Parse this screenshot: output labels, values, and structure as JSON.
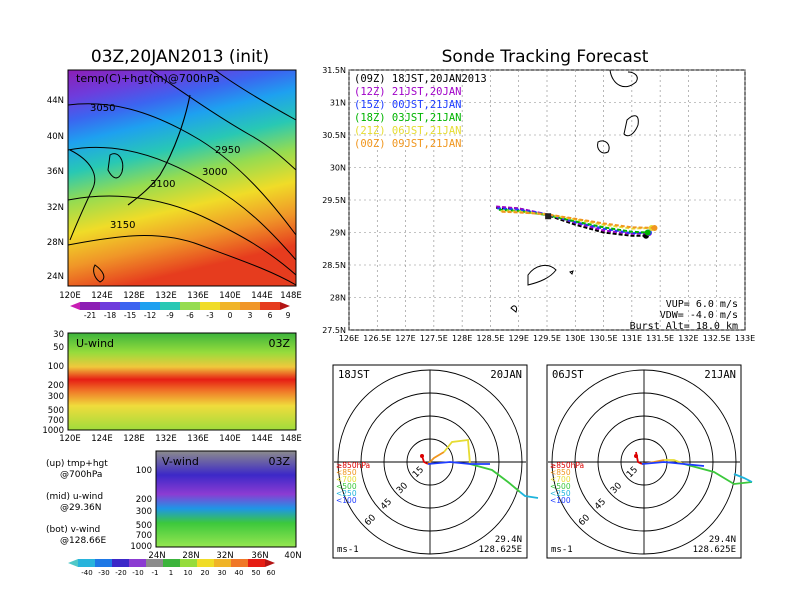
{
  "left_title": "03Z,20JAN2013 (init)",
  "right_title": "Sonde Tracking Forecast",
  "colors": {
    "red": "#dc0000",
    "purple": "#a000c8",
    "blue": "#1e3cff",
    "green": "#00b400",
    "yellow": "#e6dc32",
    "orange": "#f0961e",
    "black": "#000000"
  },
  "map700": {
    "label": "temp(C)+hgt(m)@700hPa",
    "lon_ticks": [
      "120E",
      "124E",
      "128E",
      "132E",
      "136E",
      "140E",
      "144E",
      "148E"
    ],
    "lat_ticks": [
      "44N",
      "40N",
      "36N",
      "32N",
      "28N",
      "24N"
    ],
    "contour_labels": [
      "3050",
      "2950",
      "3000",
      "3100",
      "3150"
    ],
    "colorbar_ticks": [
      "-21",
      "-18",
      "-15",
      "-12",
      "-9",
      "-6",
      "-3",
      "0",
      "3",
      "6",
      "9"
    ]
  },
  "uwind": {
    "label": "U-wind",
    "time": "03Z",
    "p_ticks": [
      "30",
      "50",
      "100",
      "200",
      "300",
      "500",
      "700",
      "1000"
    ],
    "lon_ticks": [
      "120E",
      "124E",
      "128E",
      "132E",
      "136E",
      "140E",
      "144E",
      "148E"
    ]
  },
  "vwind": {
    "label": "V-wind",
    "time": "03Z",
    "p_ticks": [
      "100",
      "200",
      "300",
      "500",
      "700",
      "1000"
    ],
    "lat_ticks": [
      "24N",
      "28N",
      "32N",
      "36N",
      "40N"
    ],
    "colorbar_ticks": [
      "-40",
      "-30",
      "-20",
      "-10",
      "-1",
      "1",
      "10",
      "20",
      "30",
      "40",
      "50",
      "60"
    ]
  },
  "legend_notes": [
    "(up) tmp+hgt",
    "@700hPa",
    "(mid) u-wind",
    "@29.36N",
    "(bot) v-wind",
    "@128.66E"
  ],
  "track": {
    "legend": [
      {
        "label": "(09Z) 18JST,20JAN2013",
        "color": "#000000"
      },
      {
        "label": "(12Z) 21JST,20JAN",
        "color": "#a000c8"
      },
      {
        "label": "(15Z) 00JST,21JAN",
        "color": "#1e3cff"
      },
      {
        "label": "(18Z) 03JST,21JAN",
        "color": "#00b400"
      },
      {
        "label": "(21Z) 06JST,21JAN",
        "color": "#e6dc32"
      },
      {
        "label": "(00Z) 09JST,21JAN",
        "color": "#f0961e"
      }
    ],
    "lat_ticks": [
      "31.5N",
      "31N",
      "30.5N",
      "30N",
      "29.5N",
      "29N",
      "28.5N",
      "28N",
      "27.5N"
    ],
    "lon_ticks": [
      "126E",
      "126.5E",
      "127E",
      "127.5E",
      "128E",
      "128.5E",
      "129E",
      "129.5E",
      "130E",
      "130.5E",
      "131E",
      "131.5E",
      "132E",
      "132.5E",
      "133E"
    ],
    "info": [
      "VUP= 6.0 m/s",
      "VDW= -4.0 m/s",
      "Burst Alt= 18.0 km"
    ]
  },
  "hodo1": {
    "time": "18JST",
    "date": "20JAN",
    "lat": "29.4N",
    "lon": "128.625E",
    "unit": "ms-1",
    "levels": [
      "≥850hPa",
      "<850",
      "<700",
      "<500",
      "<250",
      "<100"
    ],
    "ring_labels": [
      "15",
      "30",
      "45",
      "60"
    ]
  },
  "hodo2": {
    "time": "06JST",
    "date": "21JAN",
    "lat": "29.4N",
    "lon": "128.625E",
    "unit": "ms-1",
    "levels": [
      "≥850hPa",
      "<850",
      "<700",
      "<500",
      "<250",
      "<100"
    ],
    "ring_labels": [
      "15",
      "30",
      "45",
      "60"
    ]
  },
  "chart_data": [
    {
      "type": "line",
      "title": "Sonde Tracking Forecast",
      "xlabel": "",
      "ylabel": "",
      "xlim": [
        126,
        133
      ],
      "ylim": [
        27.5,
        31.5
      ],
      "series": [
        {
          "name": "(09Z) 18JST,20JAN2013",
          "x": [
            128.6,
            129.0,
            129.5,
            130.0,
            130.5,
            131.0,
            131.25
          ],
          "y": [
            29.38,
            29.37,
            29.27,
            29.12,
            29.0,
            28.95,
            28.95
          ]
        },
        {
          "name": "(12Z) 21JST,20JAN",
          "x": [
            128.6,
            129.0,
            129.5,
            130.0,
            130.5,
            131.0,
            131.3
          ],
          "y": [
            29.4,
            29.37,
            29.28,
            29.15,
            29.03,
            28.98,
            28.99
          ]
        },
        {
          "name": "(15Z) 00JST,21JAN",
          "x": [
            128.62,
            129.0,
            129.5,
            130.0,
            130.5,
            131.0,
            131.3
          ],
          "y": [
            29.37,
            29.35,
            29.28,
            29.16,
            29.06,
            28.99,
            29.0
          ]
        },
        {
          "name": "(18Z) 03JST,21JAN",
          "x": [
            128.65,
            129.0,
            129.5,
            130.0,
            130.5,
            131.0,
            131.28
          ],
          "y": [
            29.35,
            29.33,
            29.27,
            29.17,
            29.08,
            29.01,
            29.0
          ]
        },
        {
          "name": "(21Z) 06JST,21JAN",
          "x": [
            128.68,
            129.0,
            129.5,
            130.0,
            130.5,
            131.0,
            131.35
          ],
          "y": [
            29.33,
            29.32,
            29.28,
            29.2,
            29.12,
            29.06,
            29.07
          ]
        },
        {
          "name": "(00Z) 09JST,21JAN",
          "x": [
            128.7,
            129.0,
            129.5,
            130.0,
            130.5,
            131.0,
            131.4
          ],
          "y": [
            29.32,
            29.31,
            29.28,
            29.21,
            29.14,
            29.08,
            29.07
          ]
        }
      ]
    }
  ]
}
